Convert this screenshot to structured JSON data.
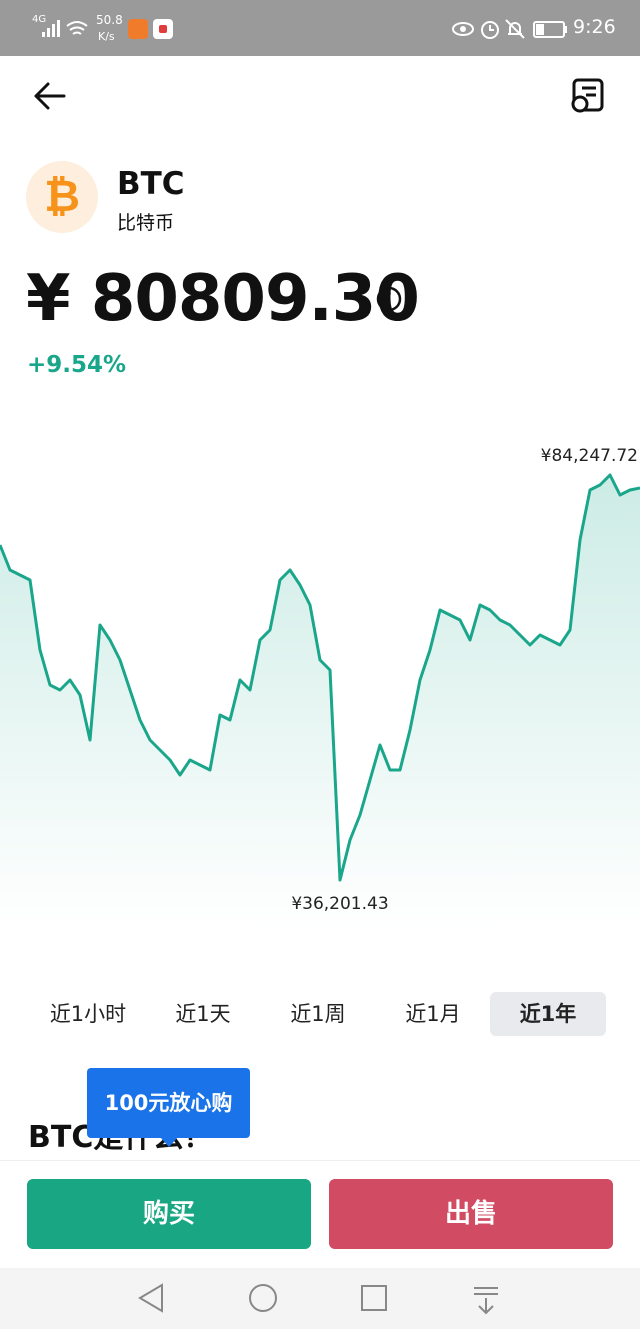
{
  "status_bar": {
    "network": "4G",
    "speed": "50.8",
    "speed_unit": "K/s",
    "time": "9:26"
  },
  "coin": {
    "symbol": "BTC",
    "name": "比特币"
  },
  "price": "¥ 80809.30",
  "change": "+9.54%",
  "chart": {
    "type": "line",
    "color": "#1aa68a",
    "values": [
      75944,
      72978,
      72385,
      71792,
      63487,
      59335,
      58742,
      59928,
      58149,
      52810,
      66453,
      64674,
      62301,
      58742,
      55183,
      52810,
      51624,
      50438,
      48658,
      50438,
      49844,
      49251,
      55776,
      55183,
      59928,
      58742,
      64674,
      65860,
      71792,
      72978,
      71198,
      68826,
      62301,
      61115,
      36201.43,
      40947,
      43913,
      48065,
      52217,
      49251,
      49251,
      53997,
      59928,
      63487,
      68233,
      67639,
      67046,
      64674,
      68826,
      68233,
      67046,
      66453,
      65267,
      64080,
      65267,
      64674,
      64080,
      65860,
      76537,
      82469,
      83062,
      84247.72,
      81875,
      82469,
      82706
    ],
    "high": {
      "value": 84247.72,
      "label": "¥84,247.72"
    },
    "low": {
      "value": 36201.43,
      "label": "¥36,201.43"
    }
  },
  "tabs": [
    {
      "label": "近1小时",
      "selected": false
    },
    {
      "label": "近1天",
      "selected": false
    },
    {
      "label": "近1周",
      "selected": false
    },
    {
      "label": "近1月",
      "selected": false
    },
    {
      "label": "近1年",
      "selected": true
    }
  ],
  "tooltip": "100元放心购",
  "section_title": "BTC是什么？",
  "buttons": {
    "buy": "购买",
    "sell": "出售"
  }
}
